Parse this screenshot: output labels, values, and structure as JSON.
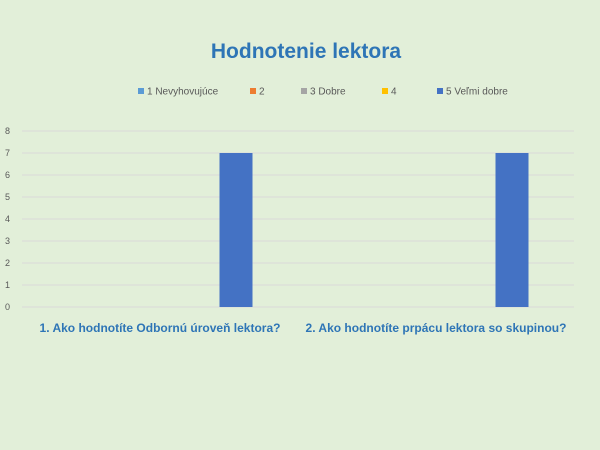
{
  "chart_data": {
    "type": "bar",
    "title": "Hodnotenie lektora",
    "categories": [
      "1. Ako hodnotíte Odbornú úroveň lektora?",
      "2. Ako hodnotíte prpácu lektora so skupinou?"
    ],
    "series": [
      {
        "name": "1 Nevyhovujúce",
        "color": "#5b9bd5",
        "values": [
          0,
          0
        ]
      },
      {
        "name": "2",
        "color": "#ed7d31",
        "values": [
          0,
          0
        ]
      },
      {
        "name": "3 Dobre",
        "color": "#a5a5a5",
        "values": [
          0,
          0
        ]
      },
      {
        "name": "4",
        "color": "#ffc000",
        "values": [
          0,
          0
        ]
      },
      {
        "name": "5 Veľmi dobre",
        "color": "#4472c4",
        "values": [
          7,
          7
        ]
      }
    ],
    "ylim": [
      0,
      8
    ],
    "yticks": [
      0,
      1,
      2,
      3,
      4,
      5,
      6,
      7,
      8
    ],
    "grid": true,
    "legend": "top"
  }
}
